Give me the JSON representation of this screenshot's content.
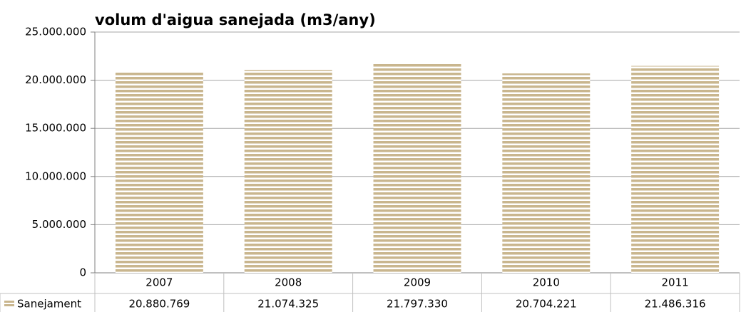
{
  "chart_data": {
    "type": "bar",
    "title": "volum d'aigua sanejada (m3/any)",
    "categories": [
      "2007",
      "2008",
      "2009",
      "2010",
      "2011"
    ],
    "series": [
      {
        "name": "Sanejament",
        "color": "#c9b68e",
        "values": [
          20880769,
          21074325,
          21797330,
          20704221,
          21486316
        ],
        "value_labels": [
          "20.880.769",
          "21.074.325",
          "21.797.330",
          "20.704.221",
          "21.486.316"
        ]
      }
    ],
    "ylim": [
      0,
      25000000
    ],
    "yticks": [
      0,
      {
        "value": 5000000,
        "label": "5.000.000"
      },
      {
        "value": 10000000,
        "label": "10.000.000"
      },
      {
        "value": 15000000,
        "label": "15.000.000"
      },
      {
        "value": 20000000,
        "label": "20.000.000"
      },
      {
        "value": 25000000,
        "label": "25.000.000"
      }
    ],
    "grid": true
  }
}
